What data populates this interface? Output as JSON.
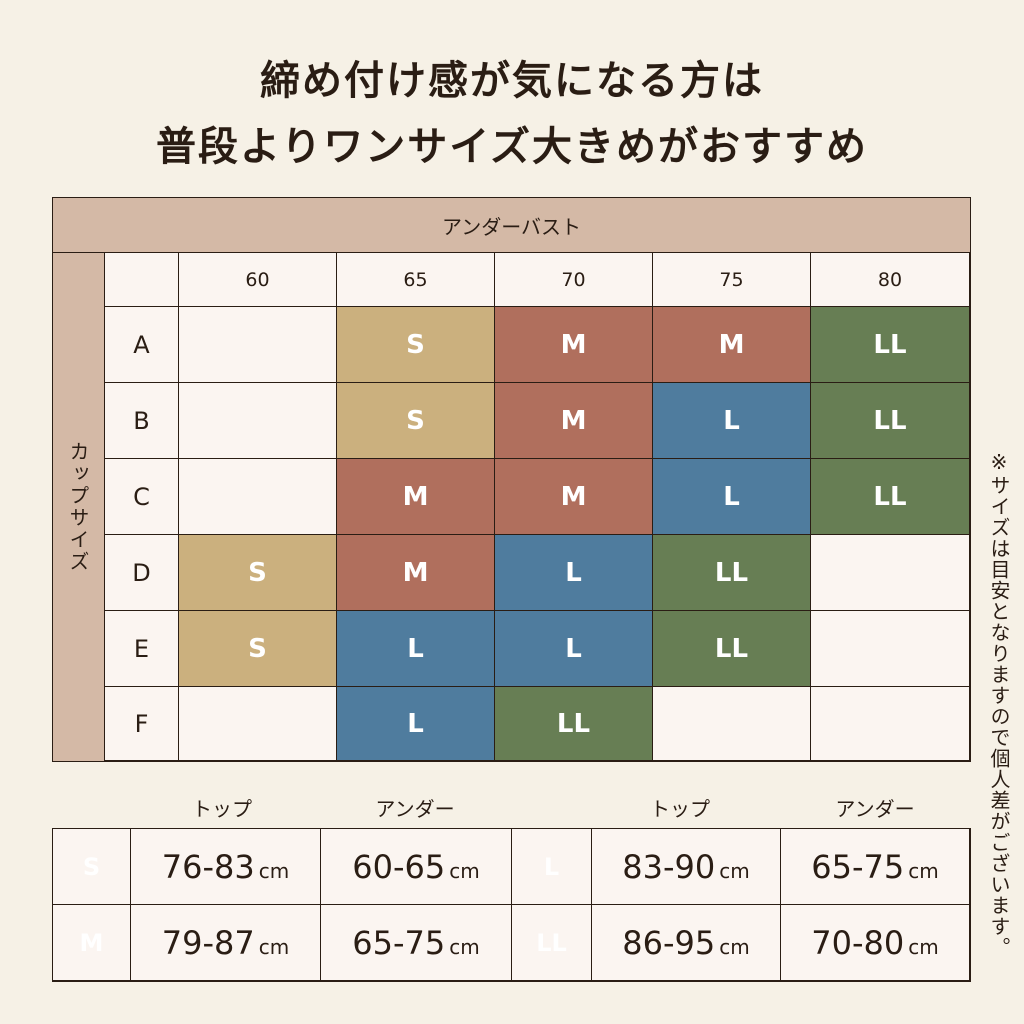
{
  "title": {
    "line1": "締め付け感が気になる方は",
    "line2": "普段よりワンサイズ大きめがおすすめ"
  },
  "grid": {
    "column_header": "アンダーバスト",
    "row_header": "カップサイズ",
    "columns": [
      "60",
      "65",
      "70",
      "75",
      "80"
    ],
    "rows": [
      {
        "label": "A",
        "sizes": [
          "",
          "S",
          "M",
          "M",
          "LL"
        ]
      },
      {
        "label": "B",
        "sizes": [
          "",
          "S",
          "M",
          "L",
          "LL"
        ]
      },
      {
        "label": "C",
        "sizes": [
          "",
          "M",
          "M",
          "L",
          "LL"
        ]
      },
      {
        "label": "D",
        "sizes": [
          "S",
          "M",
          "L",
          "LL",
          ""
        ]
      },
      {
        "label": "E",
        "sizes": [
          "S",
          "L",
          "L",
          "LL",
          ""
        ]
      },
      {
        "label": "F",
        "sizes": [
          "",
          "L",
          "LL",
          "",
          ""
        ]
      }
    ]
  },
  "measurements": {
    "headers": {
      "top": "トップ",
      "under": "アンダー"
    },
    "unit": "cm",
    "rows": [
      [
        {
          "size": "S",
          "top": "76-83",
          "under": "60-65"
        },
        {
          "size": "L",
          "top": "83-90",
          "under": "65-75"
        }
      ],
      [
        {
          "size": "M",
          "top": "79-87",
          "under": "65-75"
        },
        {
          "size": "LL",
          "top": "86-95",
          "under": "70-80"
        }
      ]
    ]
  },
  "note": "※サイズは目安となりますので個人差がございます。",
  "colors": {
    "S": "#cbb07e",
    "M": "#b06f5d",
    "L": "#4f7c9e",
    "LL": "#677e54",
    "header_bg": "#d4b9a6",
    "page_bg": "#f6f1e6"
  }
}
